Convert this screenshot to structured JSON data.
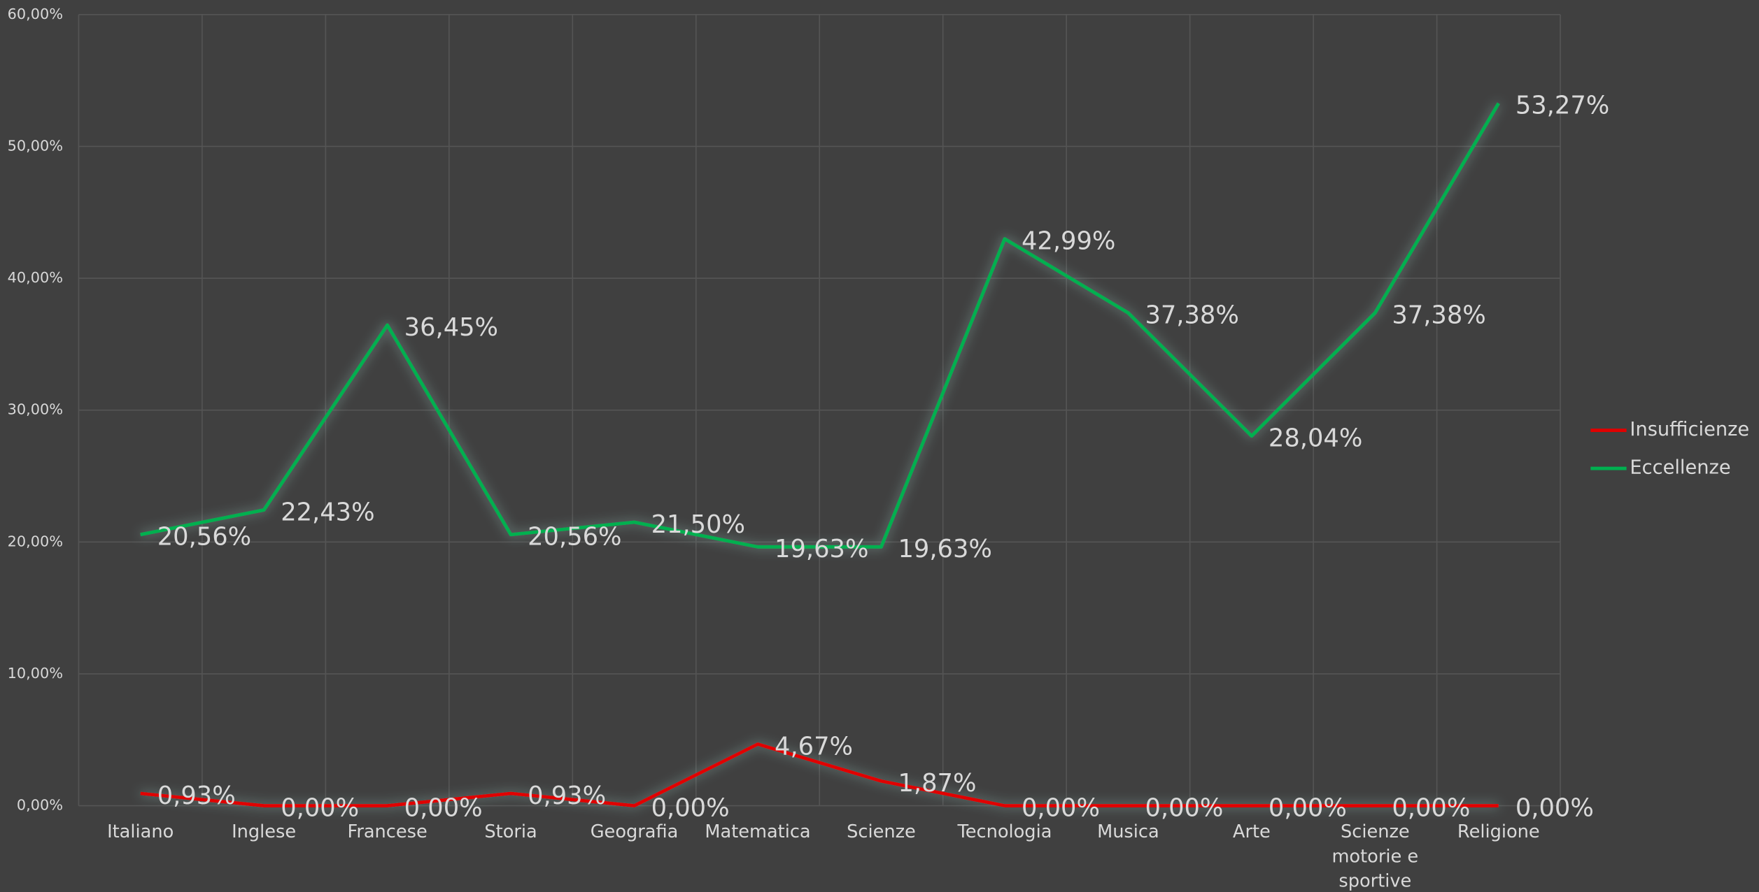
{
  "chart_data": {
    "type": "line",
    "categories": [
      "Italiano",
      "Inglese",
      "Francese",
      "Storia",
      "Geografia",
      "Matematica",
      "Scienze",
      "Tecnologia",
      "Musica",
      "Arte",
      "Scienze motorie e sportive",
      "Religione"
    ],
    "series": [
      {
        "name": "Insufficienze",
        "color": "#e00000",
        "values": [
          0.93,
          0,
          0,
          0.93,
          0,
          4.67,
          1.87,
          0,
          0,
          0,
          0,
          0
        ],
        "value_labels": [
          "0,93%",
          "0,00%",
          "0,00%",
          "0,93%",
          "0,00%",
          "4,67%",
          "1,87%",
          "0,00%",
          "0,00%",
          "0,00%",
          "0,00%",
          "0,00%"
        ]
      },
      {
        "name": "Eccellenze",
        "color": "#00b050",
        "values": [
          20.56,
          22.43,
          36.45,
          20.56,
          21.5,
          19.63,
          19.63,
          42.99,
          37.38,
          28.04,
          37.38,
          53.27
        ],
        "value_labels": [
          "20,56%",
          "22,43%",
          "36,45%",
          "20,56%",
          "21,50%",
          "19,63%",
          "19,63%",
          "42,99%",
          "37,38%",
          "28,04%",
          "37,38%",
          "53,27%"
        ]
      }
    ],
    "ylim": [
      0,
      60
    ],
    "yticks": [
      {
        "value": 0,
        "label": "0,00%"
      },
      {
        "value": 10,
        "label": "10,00%"
      },
      {
        "value": 20,
        "label": "20,00%"
      },
      {
        "value": 30,
        "label": "30,00%"
      },
      {
        "value": 40,
        "label": "40,00%"
      },
      {
        "value": 50,
        "label": "50,00%"
      },
      {
        "value": 60,
        "label": "60,00%"
      }
    ],
    "grid": true,
    "legend": "right"
  }
}
